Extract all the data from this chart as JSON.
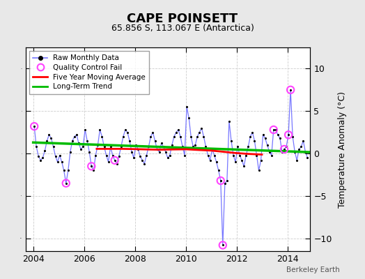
{
  "title": "CAPE POINSETT",
  "subtitle": "65.856 S, 113.067 E (Antarctica)",
  "ylabel": "Temperature Anomaly (°C)",
  "watermark": "Berkeley Earth",
  "xlim": [
    2003.7,
    2014.9
  ],
  "ylim": [
    -11.5,
    12.5
  ],
  "yticks": [
    -10,
    -5,
    0,
    5,
    10
  ],
  "xticks": [
    2004,
    2006,
    2008,
    2010,
    2012,
    2014
  ],
  "bg_color": "#e8e8e8",
  "plot_bg": "#ffffff",
  "raw_color": "#7777ff",
  "dot_color": "#000000",
  "qc_color": "#ff44ff",
  "ma_color": "#ff0000",
  "trend_color": "#00bb00",
  "raw_data": [
    [
      2004.042,
      3.2
    ],
    [
      2004.125,
      0.8
    ],
    [
      2004.208,
      -0.3
    ],
    [
      2004.292,
      -0.8
    ],
    [
      2004.375,
      -0.5
    ],
    [
      2004.458,
      0.3
    ],
    [
      2004.542,
      1.5
    ],
    [
      2004.625,
      2.2
    ],
    [
      2004.708,
      1.8
    ],
    [
      2004.792,
      0.8
    ],
    [
      2004.875,
      -0.3
    ],
    [
      2004.958,
      -1.0
    ],
    [
      2005.042,
      -0.2
    ],
    [
      2005.125,
      -1.0
    ],
    [
      2005.208,
      -2.0
    ],
    [
      2005.292,
      -3.5
    ],
    [
      2005.375,
      -2.0
    ],
    [
      2005.458,
      0.2
    ],
    [
      2005.542,
      1.5
    ],
    [
      2005.625,
      2.0
    ],
    [
      2005.708,
      2.2
    ],
    [
      2005.792,
      1.2
    ],
    [
      2005.875,
      0.5
    ],
    [
      2005.958,
      0.8
    ],
    [
      2006.042,
      2.8
    ],
    [
      2006.125,
      1.5
    ],
    [
      2006.208,
      0.2
    ],
    [
      2006.292,
      -1.5
    ],
    [
      2006.375,
      -2.0
    ],
    [
      2006.458,
      -0.2
    ],
    [
      2006.542,
      1.0
    ],
    [
      2006.625,
      2.8
    ],
    [
      2006.708,
      2.0
    ],
    [
      2006.792,
      0.8
    ],
    [
      2006.875,
      -0.2
    ],
    [
      2006.958,
      -1.0
    ],
    [
      2007.042,
      0.8
    ],
    [
      2007.125,
      -0.2
    ],
    [
      2007.208,
      -0.8
    ],
    [
      2007.292,
      -1.2
    ],
    [
      2007.375,
      -0.3
    ],
    [
      2007.458,
      0.8
    ],
    [
      2007.542,
      2.0
    ],
    [
      2007.625,
      2.8
    ],
    [
      2007.708,
      2.5
    ],
    [
      2007.792,
      1.5
    ],
    [
      2007.875,
      0.2
    ],
    [
      2007.958,
      -0.5
    ],
    [
      2008.042,
      1.0
    ],
    [
      2008.125,
      0.5
    ],
    [
      2008.208,
      -0.3
    ],
    [
      2008.292,
      -0.8
    ],
    [
      2008.375,
      -1.2
    ],
    [
      2008.458,
      -0.2
    ],
    [
      2008.542,
      0.8
    ],
    [
      2008.625,
      2.0
    ],
    [
      2008.708,
      2.5
    ],
    [
      2008.792,
      1.5
    ],
    [
      2008.875,
      0.5
    ],
    [
      2008.958,
      0.2
    ],
    [
      2009.042,
      1.2
    ],
    [
      2009.125,
      0.8
    ],
    [
      2009.208,
      0.2
    ],
    [
      2009.292,
      -0.5
    ],
    [
      2009.375,
      -0.2
    ],
    [
      2009.458,
      1.0
    ],
    [
      2009.542,
      2.0
    ],
    [
      2009.625,
      2.5
    ],
    [
      2009.708,
      2.8
    ],
    [
      2009.792,
      2.0
    ],
    [
      2009.875,
      0.8
    ],
    [
      2009.958,
      -0.2
    ],
    [
      2010.042,
      5.5
    ],
    [
      2010.125,
      4.2
    ],
    [
      2010.208,
      2.0
    ],
    [
      2010.292,
      0.8
    ],
    [
      2010.375,
      1.0
    ],
    [
      2010.458,
      2.0
    ],
    [
      2010.542,
      2.5
    ],
    [
      2010.625,
      3.0
    ],
    [
      2010.708,
      2.0
    ],
    [
      2010.792,
      0.8
    ],
    [
      2010.875,
      -0.2
    ],
    [
      2010.958,
      -0.8
    ],
    [
      2011.042,
      0.5
    ],
    [
      2011.125,
      -0.2
    ],
    [
      2011.208,
      -1.0
    ],
    [
      2011.292,
      -2.0
    ],
    [
      2011.375,
      -3.2
    ],
    [
      2011.458,
      -10.8
    ],
    [
      2011.542,
      -3.5
    ],
    [
      2011.625,
      -3.2
    ],
    [
      2011.708,
      3.8
    ],
    [
      2011.792,
      1.5
    ],
    [
      2011.875,
      -0.2
    ],
    [
      2011.958,
      -1.0
    ],
    [
      2012.042,
      0.8
    ],
    [
      2012.125,
      -0.2
    ],
    [
      2012.208,
      -0.8
    ],
    [
      2012.292,
      -1.5
    ],
    [
      2012.375,
      -0.2
    ],
    [
      2012.458,
      0.8
    ],
    [
      2012.542,
      2.0
    ],
    [
      2012.625,
      2.5
    ],
    [
      2012.708,
      1.5
    ],
    [
      2012.792,
      -0.2
    ],
    [
      2012.875,
      -2.0
    ],
    [
      2012.958,
      -0.8
    ],
    [
      2013.042,
      2.2
    ],
    [
      2013.125,
      1.8
    ],
    [
      2013.208,
      1.0
    ],
    [
      2013.292,
      0.2
    ],
    [
      2013.375,
      -0.2
    ],
    [
      2013.458,
      2.8
    ],
    [
      2013.542,
      2.8
    ],
    [
      2013.625,
      2.2
    ],
    [
      2013.708,
      1.8
    ],
    [
      2013.792,
      0.2
    ],
    [
      2013.875,
      0.5
    ],
    [
      2013.958,
      0.8
    ],
    [
      2014.042,
      2.2
    ],
    [
      2014.125,
      7.5
    ],
    [
      2014.208,
      2.0
    ],
    [
      2014.292,
      0.2
    ],
    [
      2014.375,
      -0.8
    ],
    [
      2014.458,
      0.5
    ],
    [
      2014.542,
      0.8
    ],
    [
      2014.625,
      1.5
    ],
    [
      2014.708,
      0.2
    ],
    [
      2014.792,
      -0.5
    ]
  ],
  "qc_fail": [
    [
      2004.042,
      3.2
    ],
    [
      2005.292,
      -3.5
    ],
    [
      2006.292,
      -1.5
    ],
    [
      2007.208,
      -0.8
    ],
    [
      2011.375,
      -3.2
    ],
    [
      2011.458,
      -10.8
    ],
    [
      2013.458,
      2.8
    ],
    [
      2013.875,
      0.5
    ],
    [
      2014.042,
      2.2
    ],
    [
      2014.125,
      7.5
    ]
  ],
  "trend_x": [
    2004.0,
    2015.0
  ],
  "trend_y": [
    1.3,
    0.15
  ],
  "ma_data": [
    [
      2006.5,
      0.55
    ],
    [
      2007.0,
      0.55
    ],
    [
      2007.5,
      0.55
    ],
    [
      2008.0,
      0.52
    ],
    [
      2008.5,
      0.48
    ],
    [
      2009.0,
      0.45
    ],
    [
      2009.5,
      0.48
    ],
    [
      2010.0,
      0.5
    ],
    [
      2010.5,
      0.42
    ],
    [
      2011.0,
      0.35
    ],
    [
      2011.5,
      0.2
    ],
    [
      2012.0,
      0.05
    ],
    [
      2012.5,
      -0.05
    ],
    [
      2013.0,
      -0.12
    ]
  ]
}
